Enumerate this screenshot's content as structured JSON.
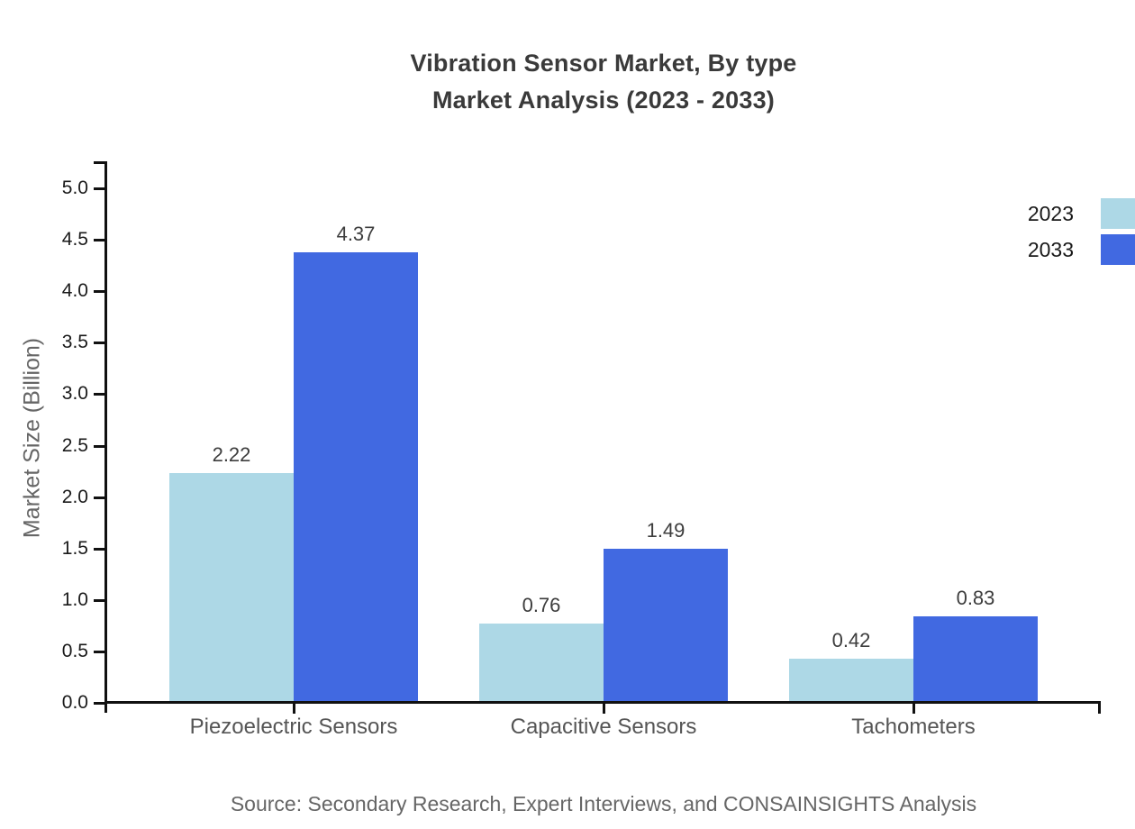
{
  "title": {
    "line1": "Vibration Sensor Market, By type",
    "line2": "Market Analysis (2023 - 2033)"
  },
  "source": "Source: Secondary Research, Expert Interviews, and CONSAINSIGHTS Analysis",
  "chart_data": {
    "type": "bar",
    "title": "Vibration Sensor Market, By type — Market Analysis (2023 - 2033)",
    "categories": [
      "Piezoelectric Sensors",
      "Capacitive Sensors",
      "Tachometers"
    ],
    "series": [
      {
        "name": "2023",
        "color": "#ADD8E6",
        "values": [
          2.22,
          0.76,
          0.42
        ]
      },
      {
        "name": "2033",
        "color": "#4169E1",
        "values": [
          4.37,
          1.49,
          0.83
        ]
      }
    ],
    "xlabel": "",
    "ylabel": "Market Size (Billion)",
    "ylim": [
      0,
      5.25
    ],
    "yticks": [
      0.0,
      0.5,
      1.0,
      1.5,
      2.0,
      2.5,
      3.0,
      3.5,
      4.0,
      4.5,
      5.0
    ],
    "grid": false,
    "legend_position": "upper right outside",
    "value_labels": true,
    "axis_color": "#111111",
    "tick_label_color": "#1a1a1a",
    "value_label_color": "#3d3d3d",
    "category_label_color": "#555555",
    "title_color": "#3a3a3a",
    "muted_text_color": "#666666"
  }
}
